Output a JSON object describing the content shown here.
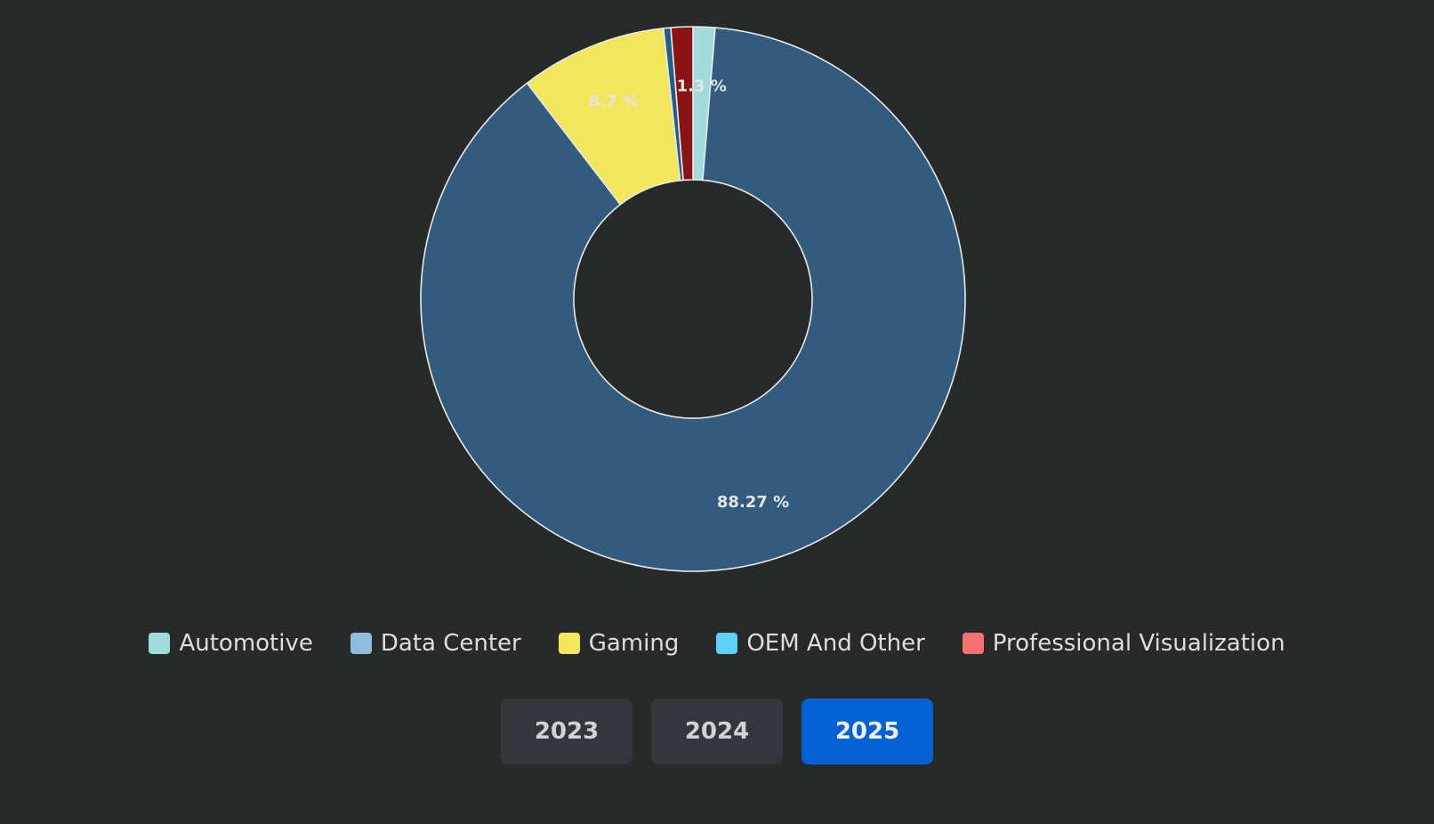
{
  "chart_data": {
    "type": "donut",
    "categories": [
      "Automotive",
      "Data Center",
      "Gaming",
      "OEM And Other",
      "Professional Visualization"
    ],
    "values": [
      1.3,
      88.27,
      8.7,
      0.43,
      1.3
    ],
    "value_labels": [
      "1.3 %",
      "88.27 %",
      "8.7 %",
      null,
      null
    ],
    "colors": [
      "#a0dcdc",
      "#335b7e",
      "#f2e65a",
      "#1f5f8a",
      "#8b1212"
    ],
    "legend_colors": [
      "#a0dcdc",
      "#8fbde0",
      "#f2e65a",
      "#5ed0f5",
      "#f87171"
    ]
  },
  "controls": {
    "years": [
      {
        "label": "2023",
        "active": false
      },
      {
        "label": "2024",
        "active": false
      },
      {
        "label": "2025",
        "active": true
      }
    ]
  }
}
